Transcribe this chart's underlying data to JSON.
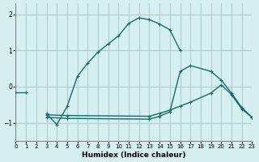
{
  "background_color": "#d6eff0",
  "grid_color": "#b0cfd0",
  "line_color": "#1a6b6b",
  "xlabel": "Humidex (Indice chaleur)",
  "xlim": [
    0,
    23
  ],
  "ylim": [
    -1.5,
    2.3
  ],
  "yticks": [
    -1,
    0,
    1,
    2
  ],
  "xticks": [
    0,
    1,
    2,
    3,
    4,
    5,
    6,
    7,
    8,
    9,
    10,
    11,
    12,
    13,
    14,
    15,
    16,
    17,
    18,
    19,
    20,
    21,
    22,
    23
  ],
  "c1x": [
    0,
    1
  ],
  "c1y": [
    -0.15,
    -0.15
  ],
  "c2x": [
    3,
    4,
    5,
    6,
    7,
    8,
    9,
    10,
    11,
    12,
    13,
    14,
    15,
    16
  ],
  "c2y": [
    -0.75,
    -1.05,
    -0.55,
    0.28,
    0.65,
    0.95,
    1.18,
    1.4,
    1.75,
    1.9,
    1.85,
    1.73,
    1.57,
    1.0
  ],
  "c3x": [
    3,
    5,
    13,
    14,
    15,
    16,
    17,
    19,
    20,
    21,
    22,
    23
  ],
  "c3y": [
    -0.78,
    -0.8,
    -0.82,
    -0.74,
    -0.65,
    -0.54,
    -0.43,
    -0.18,
    0.05,
    -0.22,
    -0.62,
    -0.85
  ],
  "c4x": [
    3,
    5,
    13,
    14,
    15,
    16,
    17,
    19,
    20,
    21,
    22,
    23
  ],
  "c4y": [
    -0.85,
    -0.88,
    -0.9,
    -0.82,
    -0.7,
    0.42,
    0.58,
    0.42,
    0.18,
    -0.18,
    -0.58,
    -0.85
  ]
}
